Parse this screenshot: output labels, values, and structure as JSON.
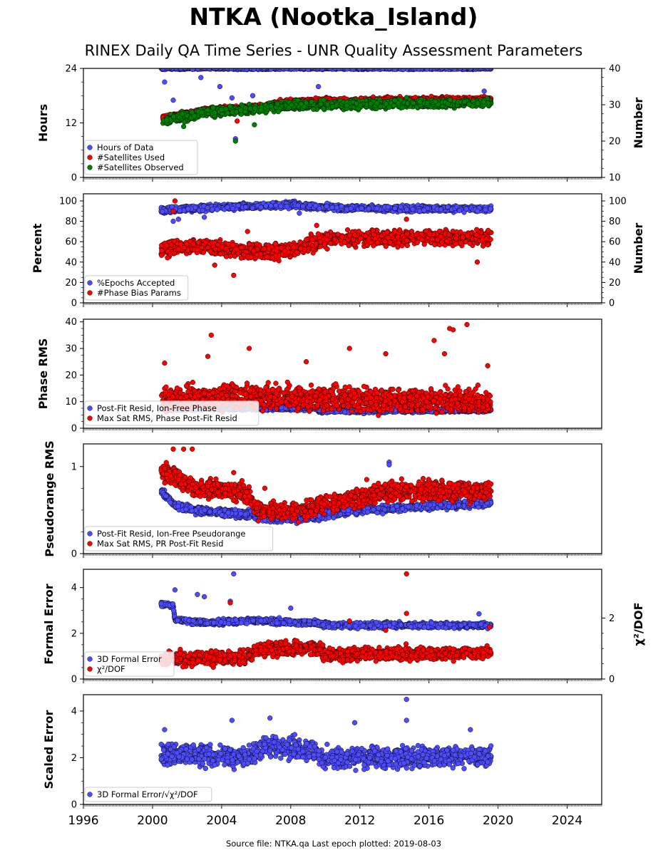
{
  "figure": {
    "title": "NTKA (Nootka_Island)",
    "subtitle": "RINEX Daily QA Time Series - UNR Quality Assessment Parameters",
    "source_note": "Source file: NTKA.qa Last epoch plotted: 2019-08-03"
  },
  "colors": {
    "blue": "#4d4dff",
    "red": "#ff0000",
    "green": "#008000",
    "edge": "#000000"
  },
  "chart_data": [
    {
      "type": "scatter",
      "ylabel": "Hours",
      "ylabel_right": "Number",
      "ylim": [
        0,
        24
      ],
      "yticks": [
        0,
        12,
        24
      ],
      "ylim_right": [
        10,
        40
      ],
      "yticks_right": [
        10,
        20,
        30,
        40
      ],
      "xlim": [
        1996,
        2026
      ],
      "xticks": [
        1996,
        2000,
        2004,
        2008,
        2012,
        2016,
        2020,
        2024
      ],
      "legend_position": "lower-left",
      "series": [
        {
          "name": "Hours of Data",
          "color": "blue",
          "axis": "left",
          "start": 2000.5,
          "end": 2019.6,
          "segments": [
            [
              2000.5,
              24
            ]
          ],
          "noise": 0.15,
          "outliers": [
            [
              2000.7,
              21.0
            ],
            [
              2001.2,
              17.0
            ],
            [
              2002.8,
              22.0
            ],
            [
              2003.9,
              20.0
            ],
            [
              2004.6,
              17.5
            ],
            [
              2004.8,
              8.5
            ],
            [
              2005.8,
              18.0
            ],
            [
              2009.6,
              20.0
            ],
            [
              2019.2,
              19.0
            ]
          ]
        },
        {
          "name": "#Satellites Used",
          "color": "red",
          "axis": "right",
          "start": 2000.6,
          "end": 2019.6,
          "segments": [
            [
              2000.6,
              26.5
            ],
            [
              2003.3,
              28.5
            ],
            [
              2006.5,
              29.5
            ],
            [
              2008.0,
              31.0
            ],
            [
              2009.5,
              31.0
            ],
            [
              2019.6,
              31.5
            ]
          ],
          "noise": 0.5,
          "outliers": [
            [
              2004.9,
              25.5
            ]
          ]
        },
        {
          "name": "#Satellites Observed",
          "color": "green",
          "axis": "right",
          "start": 2000.6,
          "end": 2019.6,
          "segments": [
            [
              2000.6,
              25.5
            ],
            [
              2003.3,
              28.0
            ],
            [
              2006.5,
              29.0
            ],
            [
              2008.0,
              30.0
            ],
            [
              2009.5,
              30.0
            ],
            [
              2019.6,
              30.5
            ]
          ],
          "noise": 0.8,
          "outliers": [
            [
              2004.8,
              20.0
            ],
            [
              2001.8,
              24.0
            ],
            [
              2005.9,
              24.5
            ]
          ]
        }
      ]
    },
    {
      "type": "scatter",
      "ylabel": "Percent",
      "ylabel_right": "Number",
      "ylim": [
        0,
        107
      ],
      "yticks": [
        0,
        20,
        40,
        60,
        80,
        100
      ],
      "ylim_right": [
        0,
        107
      ],
      "yticks_right": [
        0,
        20,
        40,
        60,
        80,
        100
      ],
      "xlim": [
        1996,
        2026
      ],
      "xticks": [
        1996,
        2000,
        2004,
        2008,
        2012,
        2016,
        2020,
        2024
      ],
      "legend_position": "lower-left",
      "series": [
        {
          "name": "%Epochs Accepted",
          "color": "blue",
          "axis": "left",
          "start": 2000.5,
          "end": 2019.6,
          "segments": [
            [
              2000.5,
              91
            ],
            [
              2004.0,
              94
            ],
            [
              2008.0,
              96
            ],
            [
              2011.0,
              93
            ],
            [
              2019.6,
              92
            ]
          ],
          "noise": 2.0,
          "outliers": [
            [
              2001.2,
              80
            ],
            [
              2001.5,
              82
            ],
            [
              2003.0,
              84
            ],
            [
              2008.5,
              88
            ]
          ]
        },
        {
          "name": "#Phase Bias Params",
          "color": "red",
          "axis": "left",
          "start": 2000.5,
          "end": 2019.6,
          "segments": [
            [
              2000.5,
              52
            ],
            [
              2003.0,
              56
            ],
            [
              2005.5,
              50
            ],
            [
              2008.0,
              52
            ],
            [
              2010.0,
              62
            ],
            [
              2012.0,
              64
            ],
            [
              2019.6,
              64
            ]
          ],
          "noise": 5.0,
          "outliers": [
            [
              2001.3,
              100
            ],
            [
              2001.2,
              90
            ],
            [
              2004.7,
              27
            ],
            [
              2003.6,
              37
            ],
            [
              2005.5,
              70
            ],
            [
              2009.5,
              76
            ],
            [
              2014.7,
              82
            ],
            [
              2018.8,
              40
            ]
          ]
        }
      ]
    },
    {
      "type": "scatter",
      "ylabel": "Phase RMS",
      "ylim": [
        0,
        41
      ],
      "yticks": [
        0,
        10,
        20,
        30,
        40
      ],
      "xlim": [
        1996,
        2026
      ],
      "xticks": [
        1996,
        2000,
        2004,
        2008,
        2012,
        2016,
        2020,
        2024
      ],
      "legend_position": "lower-left",
      "series": [
        {
          "name": "Post-Fit Resid, Ion-Free Phase",
          "color": "blue",
          "axis": "left",
          "start": 2000.5,
          "end": 2019.6,
          "segments": [
            [
              2000.5,
              7.5
            ],
            [
              2009.5,
              7.5
            ],
            [
              2009.6,
              6.5
            ],
            [
              2019.6,
              6.8
            ]
          ],
          "noise": 0.5,
          "outliers": []
        },
        {
          "name": "Max Sat RMS, Phase Post-Fit Resid",
          "color": "red",
          "axis": "left",
          "start": 2000.5,
          "end": 2019.6,
          "segments": [
            [
              2000.5,
              11
            ],
            [
              2005.0,
              12
            ],
            [
              2010.0,
              11
            ],
            [
              2019.6,
              10
            ]
          ],
          "noise": 3.0,
          "outliers": [
            [
              2000.7,
              24.5
            ],
            [
              2003.4,
              35
            ],
            [
              2003.2,
              27
            ],
            [
              2005.6,
              30
            ],
            [
              2008.9,
              25
            ],
            [
              2011.4,
              30
            ],
            [
              2013.5,
              28
            ],
            [
              2016.3,
              33
            ],
            [
              2017.2,
              37.5
            ],
            [
              2017.4,
              37
            ],
            [
              2018.2,
              39
            ],
            [
              2019.4,
              23.5
            ],
            [
              2016.9,
              28
            ]
          ]
        }
      ]
    },
    {
      "type": "scatter",
      "ylabel": "Pseudorange RMS",
      "ylim": [
        0,
        1.26
      ],
      "yticks": [
        0,
        1
      ],
      "xlim": [
        1996,
        2026
      ],
      "xticks": [
        1996,
        2000,
        2004,
        2008,
        2012,
        2016,
        2020,
        2024
      ],
      "legend_position": "lower-left",
      "series": [
        {
          "name": "Post-Fit Resid, Ion-Free Pseudorange",
          "color": "blue",
          "axis": "left",
          "start": 2000.5,
          "end": 2019.6,
          "segments": [
            [
              2000.5,
              0.72
            ],
            [
              2001.3,
              0.55
            ],
            [
              2002.5,
              0.5
            ],
            [
              2005.5,
              0.45
            ],
            [
              2007.0,
              0.4
            ],
            [
              2009.0,
              0.42
            ],
            [
              2012.0,
              0.5
            ],
            [
              2016.0,
              0.55
            ],
            [
              2019.6,
              0.58
            ]
          ],
          "noise": 0.03,
          "outliers": [
            [
              2013.7,
              1.05
            ],
            [
              2013.7,
              1.02
            ]
          ]
        },
        {
          "name": "Max Sat RMS, PR Post-Fit Resid",
          "color": "red",
          "axis": "left",
          "start": 2000.5,
          "end": 2019.6,
          "segments": [
            [
              2000.5,
              0.95
            ],
            [
              2001.5,
              0.85
            ],
            [
              2002.5,
              0.75
            ],
            [
              2005.5,
              0.7
            ],
            [
              2006.0,
              0.5
            ],
            [
              2008.5,
              0.48
            ],
            [
              2009.5,
              0.55
            ],
            [
              2012.0,
              0.65
            ],
            [
              2014.0,
              0.72
            ],
            [
              2019.6,
              0.72
            ]
          ],
          "noise": 0.07,
          "outliers": [
            [
              2001.2,
              1.2
            ],
            [
              2001.8,
              1.2
            ],
            [
              2002.3,
              1.2
            ],
            [
              2004.7,
              0.93
            ],
            [
              2006.5,
              0.75
            ],
            [
              2012.4,
              0.85
            ]
          ]
        }
      ]
    },
    {
      "type": "scatter",
      "ylabel": "Formal Error",
      "ylabel_right": "χ²/DOF",
      "ylim": [
        0,
        4.8
      ],
      "yticks": [
        0,
        2,
        4
      ],
      "ylim_right": [
        0,
        3.6
      ],
      "yticks_right": [
        0,
        2
      ],
      "xlim": [
        1996,
        2026
      ],
      "xticks": [
        1996,
        2000,
        2004,
        2008,
        2012,
        2016,
        2020,
        2024
      ],
      "legend_position": "lower-left",
      "series": [
        {
          "name": "3D Formal Error",
          "color": "blue",
          "axis": "left",
          "start": 2000.5,
          "end": 2019.6,
          "segments": [
            [
              2000.5,
              3.3
            ],
            [
              2001.2,
              3.2
            ],
            [
              2001.3,
              2.6
            ],
            [
              2003.0,
              2.45
            ],
            [
              2004.0,
              2.5
            ],
            [
              2006.0,
              2.55
            ],
            [
              2009.5,
              2.45
            ],
            [
              2010.0,
              2.35
            ],
            [
              2019.6,
              2.35
            ]
          ],
          "noise": 0.08,
          "outliers": [
            [
              2004.7,
              4.6
            ],
            [
              2003.0,
              3.6
            ],
            [
              2002.6,
              3.7
            ],
            [
              2001.3,
              3.9
            ],
            [
              2004.5,
              3.4
            ],
            [
              2008.0,
              3.1
            ],
            [
              2018.9,
              2.85
            ],
            [
              2019.4,
              2.2
            ]
          ]
        },
        {
          "name": "χ²/DOF",
          "color": "red",
          "axis": "right",
          "start": 2000.5,
          "end": 2019.6,
          "segments": [
            [
              2000.5,
              0.65
            ],
            [
              2005.5,
              0.7
            ],
            [
              2006.0,
              0.95
            ],
            [
              2009.5,
              1.05
            ],
            [
              2010.0,
              0.8
            ],
            [
              2019.6,
              0.85
            ]
          ],
          "noise": 0.15,
          "outliers": [
            [
              2014.7,
              3.45
            ],
            [
              2014.7,
              2.15
            ],
            [
              2004.5,
              2.5
            ],
            [
              2011.4,
              1.9
            ],
            [
              2013.5,
              1.6
            ],
            [
              2019.5,
              1.7
            ]
          ]
        }
      ]
    },
    {
      "type": "scatter",
      "ylabel": "Scaled Error",
      "ylim": [
        0,
        4.7
      ],
      "yticks": [
        0,
        2,
        4
      ],
      "xlim": [
        1996,
        2026
      ],
      "xticks": [
        1996,
        2000,
        2004,
        2008,
        2012,
        2016,
        2020,
        2024
      ],
      "legend_position": "lower-left",
      "series": [
        {
          "name": "3D Formal Error/√χ²/DOF",
          "color": "blue",
          "axis": "left",
          "start": 2000.5,
          "end": 2019.6,
          "segments": [
            [
              2000.5,
              2.2
            ],
            [
              2003.0,
              2.1
            ],
            [
              2005.5,
              2.0
            ],
            [
              2006.5,
              2.5
            ],
            [
              2009.5,
              2.3
            ],
            [
              2009.6,
              2.0
            ],
            [
              2019.6,
              2.05
            ]
          ],
          "noise": 0.3,
          "outliers": [
            [
              2014.7,
              4.5
            ],
            [
              2006.8,
              3.7
            ],
            [
              2004.6,
              3.6
            ],
            [
              2011.7,
              3.5
            ],
            [
              2000.7,
              3.2
            ],
            [
              2018.4,
              3.2
            ],
            [
              2014.7,
              3.6
            ]
          ]
        }
      ]
    }
  ]
}
